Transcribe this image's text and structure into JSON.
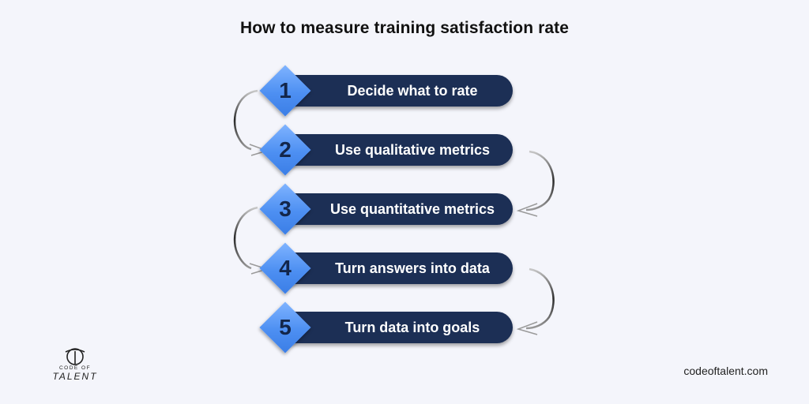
{
  "title": "How to measure training satisfaction rate",
  "steps": [
    {
      "number": "1",
      "label": "Decide what to rate"
    },
    {
      "number": "2",
      "label": "Use qualitative metrics"
    },
    {
      "number": "3",
      "label": "Use quantitative metrics"
    },
    {
      "number": "4",
      "label": "Turn answers into data"
    },
    {
      "number": "5",
      "label": "Turn data into goals"
    }
  ],
  "logo": {
    "top_text": "CODE OF",
    "bottom_text": "TALENT"
  },
  "website": "codeoftalent.com",
  "colors": {
    "background": "#f4f5fb",
    "pill": "#1c2f55",
    "diamond": "#4d8ff2",
    "number": "#13264a",
    "text": "#ffffff"
  }
}
